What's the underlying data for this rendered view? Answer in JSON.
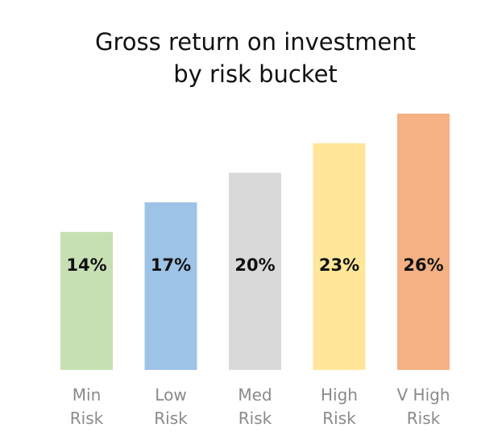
{
  "title_line1": "Gross return on investment",
  "title_line2": "by risk bucket",
  "chart_data": {
    "type": "bar",
    "title": "Gross return on investment by risk bucket",
    "xlabel": "",
    "ylabel": "",
    "categories": [
      [
        "Min",
        "Risk"
      ],
      [
        "Low",
        "Risk"
      ],
      [
        "Med",
        "Risk"
      ],
      [
        "High",
        "Risk"
      ],
      [
        "V High",
        "Risk"
      ]
    ],
    "values": [
      14,
      17,
      20,
      23,
      26
    ],
    "value_labels": [
      "14%",
      "17%",
      "20%",
      "23%",
      "26%"
    ],
    "colors": [
      "#c6e0b4",
      "#9dc3e6",
      "#d9d9d9",
      "#ffe699",
      "#f4b183"
    ],
    "grid": false,
    "legend": "none"
  }
}
